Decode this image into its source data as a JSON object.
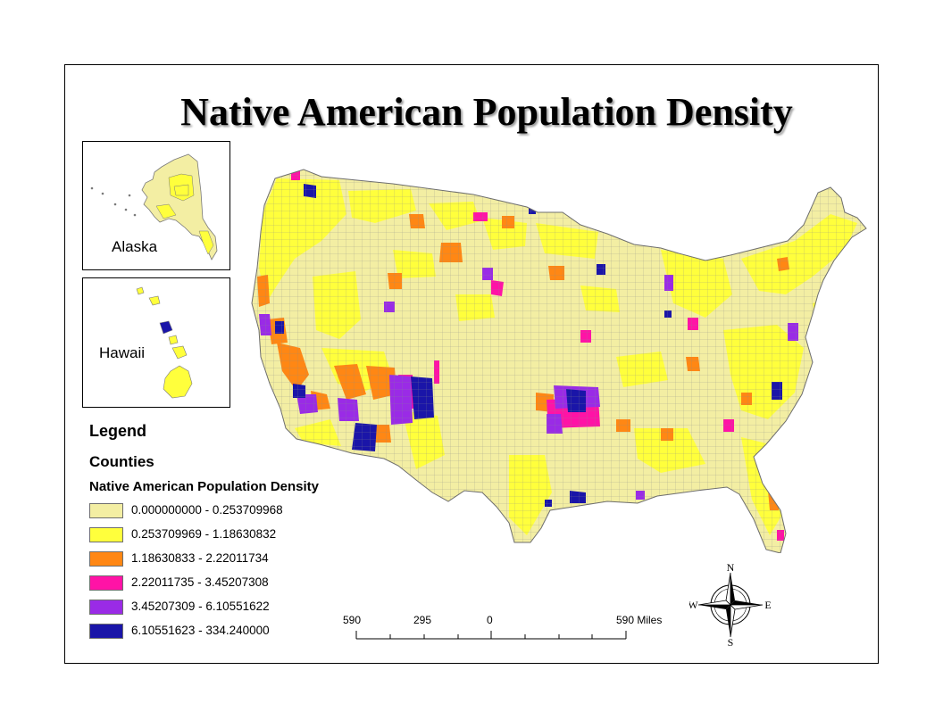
{
  "title": "Native American Population Density",
  "insets": {
    "alaska_label": "Alaska",
    "hawaii_label": "Hawaii"
  },
  "legend": {
    "title": "Legend",
    "layer": "Counties",
    "field": "Native American Population Density",
    "classes": [
      {
        "label": "0.000000000 - 0.253709968",
        "color": "#F3EEA3"
      },
      {
        "label": "0.253709969 - 1.18630832",
        "color": "#FFFF3C"
      },
      {
        "label": "1.18630833 - 2.22011734",
        "color": "#FF8714"
      },
      {
        "label": "2.22011735 - 3.45207308",
        "color": "#FF13A6"
      },
      {
        "label": "3.45207309 - 6.10551622",
        "color": "#9A2BE6"
      },
      {
        "label": "6.10551623 - 334.240000",
        "color": "#1A15A8"
      }
    ]
  },
  "scale_bar": {
    "labels": [
      "590",
      "295",
      "0",
      "590 Miles"
    ]
  },
  "north_arrow": {
    "n": "N",
    "s": "S",
    "e": "E",
    "w": "W",
    "icon": "compass-rose-icon"
  },
  "colors": {
    "county_border": "#7a7a7a",
    "frame": "#000000"
  }
}
